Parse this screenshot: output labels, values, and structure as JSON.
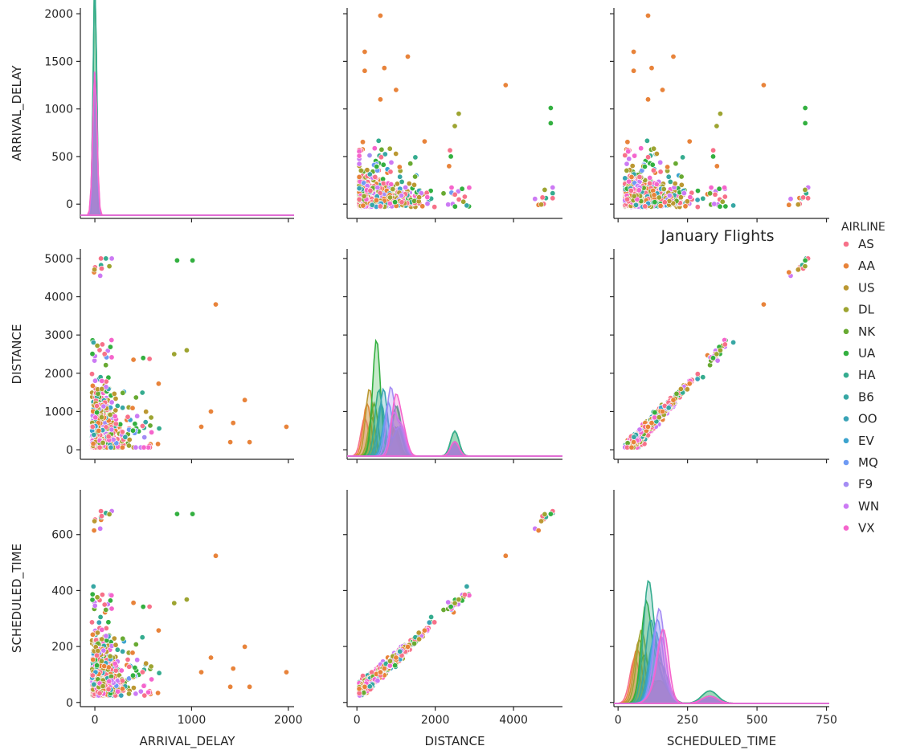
{
  "chart_data": {
    "type": "scatter",
    "kind": "pairplot",
    "title": "January Flights",
    "variables": [
      "ARRIVAL_DELAY",
      "DISTANCE",
      "SCHEDULED_TIME"
    ],
    "hue": "AIRLINE",
    "legend_title": "AIRLINE",
    "legend_placement": "right",
    "grid": false,
    "ranges": {
      "ARRIVAL_DELAY": [
        -150,
        2060
      ],
      "DISTANCE": [
        -250,
        5250
      ],
      "SCHEDULED_TIME": [
        -15,
        760
      ]
    },
    "ticks": {
      "ARRIVAL_DELAY": [
        0,
        500,
        1000,
        1500,
        2000
      ],
      "DISTANCE": [
        0,
        1000,
        2000,
        3000,
        4000,
        5000
      ],
      "SCHEDULED_TIME": [
        0,
        200,
        400,
        600
      ]
    },
    "xticks": {
      "ARRIVAL_DELAY": [
        0,
        1000,
        2000
      ],
      "DISTANCE": [
        0,
        2000,
        4000
      ],
      "SCHEDULED_TIME": [
        0,
        250,
        500,
        750
      ]
    },
    "series": [
      {
        "name": "AS",
        "color": "#f77189"
      },
      {
        "name": "AA",
        "color": "#e8833a"
      },
      {
        "name": "US",
        "color": "#bb9832"
      },
      {
        "name": "DL",
        "color": "#9da431"
      },
      {
        "name": "NK",
        "color": "#68aa32"
      },
      {
        "name": "UA",
        "color": "#33b040"
      },
      {
        "name": "HA",
        "color": "#35ac8f"
      },
      {
        "name": "B6",
        "color": "#37a7a4"
      },
      {
        "name": "OO",
        "color": "#39a3b6"
      },
      {
        "name": "EV",
        "color": "#3ba3ce"
      },
      {
        "name": "MQ",
        "color": "#6e9af4"
      },
      {
        "name": "F9",
        "color": "#a48cf4"
      },
      {
        "name": "WN",
        "color": "#cc7af4"
      },
      {
        "name": "VX",
        "color": "#f565cc"
      }
    ],
    "scatter_points": {
      "delay_vs_distance": [
        {
          "airline": "AA",
          "arrival_delay": 1980,
          "distance": 600
        },
        {
          "airline": "AA",
          "arrival_delay": 1600,
          "distance": 200
        },
        {
          "airline": "AA",
          "arrival_delay": 1550,
          "distance": 1300
        },
        {
          "airline": "AA",
          "arrival_delay": 1430,
          "distance": 700
        },
        {
          "airline": "AA",
          "arrival_delay": 1400,
          "distance": 200
        },
        {
          "airline": "AA",
          "arrival_delay": 1250,
          "distance": 3800
        },
        {
          "airline": "AA",
          "arrival_delay": 1200,
          "distance": 1000
        },
        {
          "airline": "AA",
          "arrival_delay": 1100,
          "distance": 600
        },
        {
          "airline": "UA",
          "arrival_delay": 850,
          "distance": 4950
        },
        {
          "airline": "UA",
          "arrival_delay": 1010,
          "distance": 4950
        },
        {
          "airline": "UA",
          "arrival_delay": 500,
          "distance": 2400
        },
        {
          "airline": "DL",
          "arrival_delay": 950,
          "distance": 2600
        },
        {
          "airline": "DL",
          "arrival_delay": 820,
          "distance": 2500
        }
      ],
      "delay_vs_time": [
        {
          "airline": "AA",
          "arrival_delay": 1980,
          "scheduled_time": 135
        },
        {
          "airline": "AA",
          "arrival_delay": 1600,
          "scheduled_time": 75
        },
        {
          "airline": "AA",
          "arrival_delay": 1500,
          "scheduled_time": 190
        },
        {
          "airline": "AA",
          "arrival_delay": 1420,
          "scheduled_time": 65
        },
        {
          "airline": "AA",
          "arrival_delay": 1230,
          "scheduled_time": 445
        },
        {
          "airline": "UA",
          "arrival_delay": 1010,
          "scheduled_time": 670
        },
        {
          "airline": "UA",
          "arrival_delay": 850,
          "scheduled_time": 670
        }
      ]
    }
  }
}
